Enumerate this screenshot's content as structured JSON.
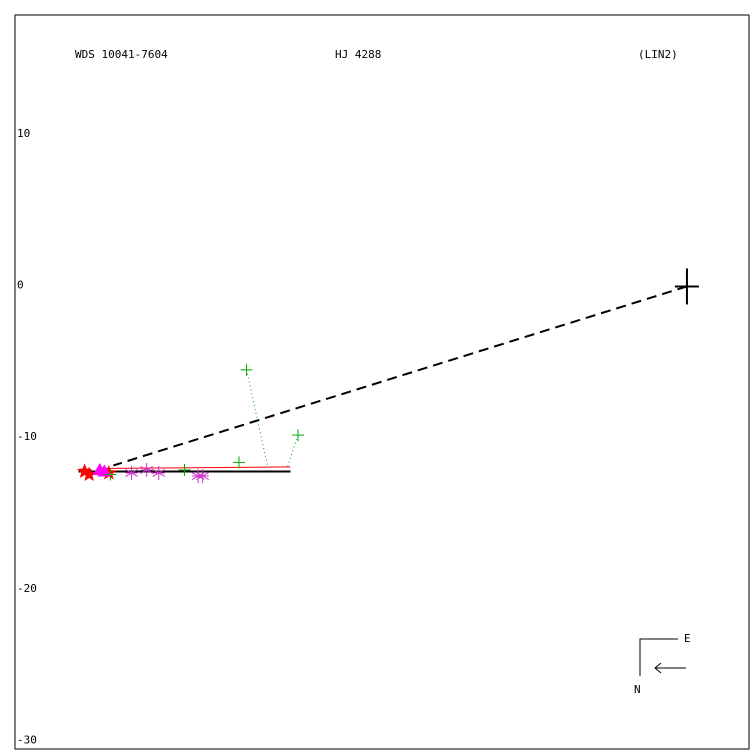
{
  "chart_data": {
    "type": "scatter",
    "title": "WDS 10041-7604",
    "subtitle": "HJ 4288",
    "reference": "(LIN2)",
    "compass": {
      "east": "E",
      "north": "N"
    },
    "xlim": [
      -44.4,
      4.1
    ],
    "ylim": [
      -30.5,
      17.9
    ],
    "yticks": [
      10,
      0,
      -10,
      -20,
      -30
    ],
    "grid": false,
    "series": [
      {
        "color": "#000000",
        "marker": "plus-large",
        "x": [
          0
        ],
        "values": [
          0
        ]
      },
      {
        "color": "#ff0000",
        "marker": "star",
        "x": [
          -39.8,
          -39.5,
          -38.2
        ],
        "values": [
          -12.2,
          -12.4,
          -12.3
        ]
      },
      {
        "color": "#ff00ff",
        "marker": "triangle",
        "x": [
          -38.8,
          -38.5
        ],
        "values": [
          -12.1,
          -12.2
        ]
      },
      {
        "color": "#cc33cc",
        "marker": "asterisk",
        "x": [
          -36.7,
          -35.7,
          -34.9,
          -32.3,
          -32.0
        ],
        "values": [
          -12.3,
          -12.1,
          -12.3,
          -12.5,
          -12.5
        ]
      },
      {
        "color": "#00aa00",
        "marker": "plus",
        "x": [
          -29.1,
          -25.7,
          -29.6,
          -33.2,
          -38.1
        ],
        "values": [
          -5.5,
          -9.8,
          -11.6,
          -12.1,
          -12.4
        ]
      }
    ],
    "lines": [
      {
        "color": "#000000",
        "style": "solid",
        "width": 2,
        "x": [
          -40.2,
          -26.2
        ],
        "values": [
          -12.2,
          -12.2
        ]
      },
      {
        "color": "#ff0000",
        "style": "solid",
        "width": 1,
        "x": [
          -38.9,
          -26.2
        ],
        "values": [
          -12.0,
          -11.9
        ]
      },
      {
        "color": "#000000",
        "style": "dashed",
        "width": 2,
        "x": [
          0,
          -37.9
        ],
        "values": [
          0,
          -11.8
        ]
      },
      {
        "color": "#00aa00",
        "style": "dotted",
        "width": 1,
        "x": [
          -29.1,
          -27.7
        ],
        "values": [
          -5.5,
          -11.9
        ]
      },
      {
        "color": "#00aa00",
        "style": "dotted",
        "width": 1,
        "x": [
          -25.7,
          -26.4
        ],
        "values": [
          -9.8,
          -11.9
        ]
      }
    ]
  }
}
